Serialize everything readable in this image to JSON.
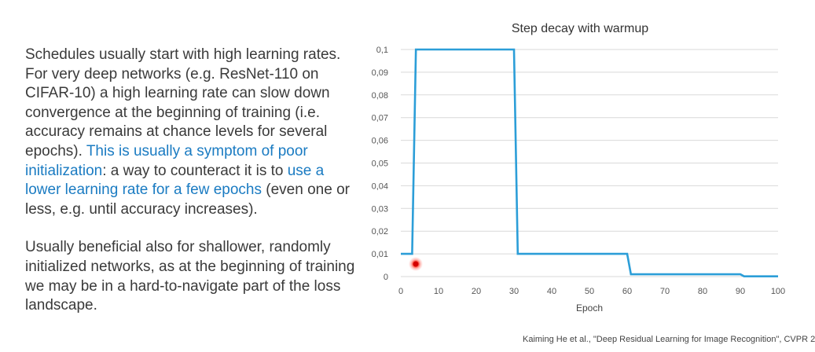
{
  "paragraphs": [
    {
      "runs": [
        {
          "text": "Schedules usually start with high learning rates. For very deep networks (e.g. ResNet-110 on CIFAR-10) a high learning rate can slow down convergence at the beginning of training (i.e. accuracy remains at chance levels for several epochs). ",
          "highlight": false
        },
        {
          "text": "This is usually a symptom of poor initialization",
          "highlight": true
        },
        {
          "text": ": a way to counteract it is to ",
          "highlight": false
        },
        {
          "text": "use a lower learning rate for a few epochs",
          "highlight": true
        },
        {
          "text": " (even one or less, e.g. until accuracy increases).",
          "highlight": false
        }
      ]
    },
    {
      "runs": [
        {
          "text": "Usually beneficial also for shallower, randomly initialized networks, as at the beginning of training we may be in a hard-to-navigate part of the loss landscape.",
          "highlight": false
        }
      ]
    }
  ],
  "citation": "Kaiming He et al.,  \"Deep Residual Learning for Image Recognition\", CVPR 2",
  "colors": {
    "text": "#3a3a3a",
    "highlight": "#1a7bc2",
    "line": "#2c9ed8",
    "grid": "#d9d9d9",
    "laser_pointer": "#e02020"
  },
  "chart_data": {
    "type": "line",
    "title": "Step decay with warmup",
    "xlabel": "Epoch",
    "ylabel": "",
    "xlim": [
      0,
      100
    ],
    "ylim": [
      0,
      0.1
    ],
    "xticks": [
      0,
      10,
      20,
      30,
      40,
      50,
      60,
      70,
      80,
      90,
      100
    ],
    "xtick_labels": [
      "0",
      "10",
      "20",
      "30",
      "40",
      "50",
      "60",
      "70",
      "80",
      "90",
      "100"
    ],
    "yticks": [
      0,
      0.01,
      0.02,
      0.03,
      0.04,
      0.05,
      0.06,
      0.07,
      0.08,
      0.09,
      0.1
    ],
    "ytick_labels": [
      "0",
      "0,01",
      "0,02",
      "0,03",
      "0,04",
      "0,05",
      "0,06",
      "0,07",
      "0,08",
      "0,09",
      "0,1"
    ],
    "grid": true,
    "series": [
      {
        "x": [
          0,
          3,
          4,
          30,
          31,
          60,
          61,
          90,
          91,
          100
        ],
        "y": [
          0.01,
          0.01,
          0.1,
          0.1,
          0.01,
          0.01,
          0.001,
          0.001,
          0.0001,
          0.0001
        ]
      }
    ]
  }
}
